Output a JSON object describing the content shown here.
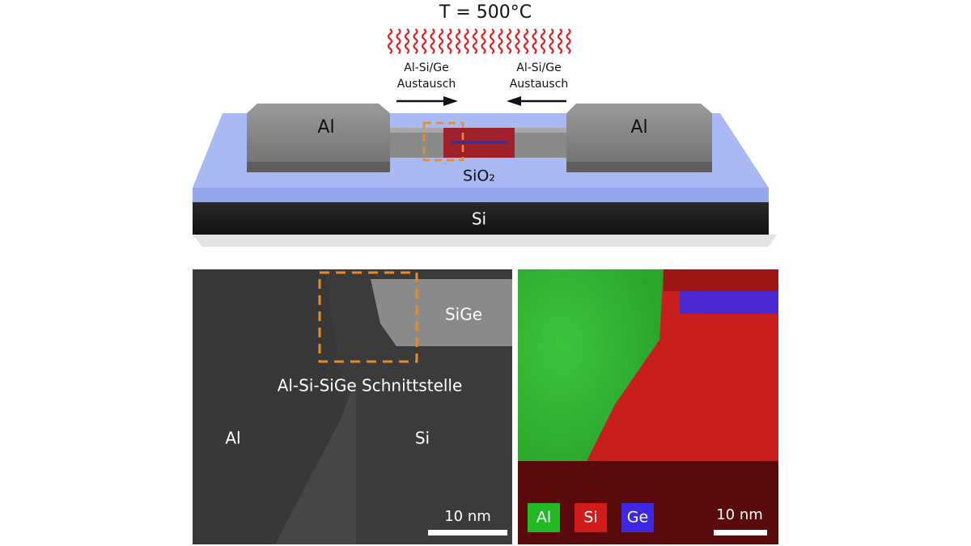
{
  "device": {
    "temperature": "T = 500°C",
    "exchange_left": [
      "Al-Si/Ge",
      "Austausch"
    ],
    "exchange_right": [
      "Al-Si/Ge",
      "Austausch"
    ],
    "pad_left": "Al",
    "pad_right": "Al",
    "oxide": "SiO₂",
    "substrate": "Si"
  },
  "tem": {
    "segment": "SiGe",
    "interface": "Al-Si-SiGe Schnittstelle",
    "left": "Al",
    "right": "Si",
    "scale": "10 nm"
  },
  "edx": {
    "legend": [
      "Al",
      "Si",
      "Ge"
    ],
    "scale": "10 nm"
  }
}
